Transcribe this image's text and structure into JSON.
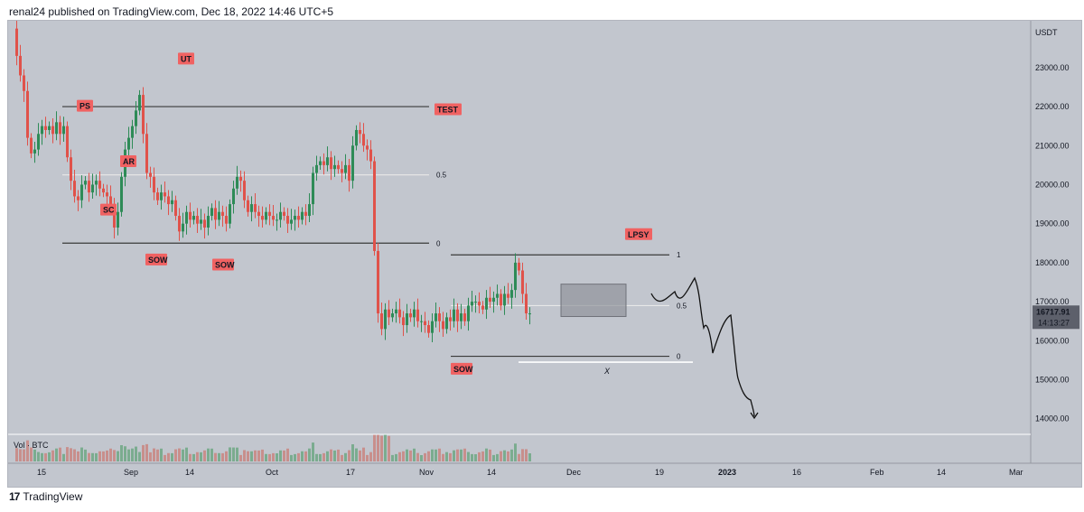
{
  "attribution": "renal24 published on TradingView.com, Dec 18, 2022 14:46 UTC+5",
  "brand": {
    "name": "TradingView",
    "icon": "tradingview-logo-icon"
  },
  "colors": {
    "background": "#c2c6ce",
    "up": "#2e8b57",
    "down": "#e0524a",
    "marker": "#f06262",
    "range_box": "#8c8f96"
  },
  "chart_data": {
    "type": "candlestick",
    "currency": "USDT",
    "ylim": [
      13600,
      24200
    ],
    "yticks": [
      14000,
      15000,
      16000,
      17000,
      18000,
      19000,
      20000,
      21000,
      22000,
      23000
    ],
    "ytick_labels": [
      "14000.00",
      "15000.00",
      "16000.00",
      "17000.00",
      "18000.00",
      "19000.00",
      "20000.00",
      "21000.00",
      "22000.00",
      "23000.00"
    ],
    "xtick_labels": [
      "15",
      "Sep",
      "14",
      "Oct",
      "17",
      "Nov",
      "14",
      "Dec",
      "19",
      "2023",
      "16",
      "Feb",
      "14",
      "Mar"
    ],
    "x_dates": [
      "2022-08-15",
      "2022-09-01",
      "2022-09-14",
      "2022-10-01",
      "2022-10-17",
      "2022-11-01",
      "2022-11-14",
      "2022-12-01",
      "2022-12-19",
      "2023-01-01",
      "2023-01-16",
      "2023-02-01",
      "2023-02-14",
      "2023-03-01"
    ],
    "grid": false,
    "last_price": "16717.91",
    "countdown": "14:13:27",
    "volume_label": "Vol · BTC",
    "closes": [
      24000,
      23300,
      22800,
      22400,
      21200,
      20800,
      20900,
      21300,
      21500,
      21400,
      21500,
      21300,
      21600,
      21300,
      21500,
      20700,
      20100,
      19700,
      19600,
      20000,
      20100,
      19800,
      20000,
      20100,
      19900,
      19800,
      19700,
      19500,
      18900,
      19300,
      20200,
      20900,
      21200,
      21500,
      21900,
      22300,
      21300,
      20300,
      20200,
      19800,
      19600,
      19800,
      19700,
      19500,
      19600,
      19200,
      18800,
      19000,
      19300,
      19100,
      19200,
      19000,
      19100,
      18900,
      19200,
      19400,
      19100,
      19300,
      19200,
      19000,
      19500,
      19900,
      20200,
      20100,
      19600,
      19300,
      19500,
      19300,
      19200,
      19100,
      19300,
      19200,
      19100,
      19100,
      19300,
      19200,
      19000,
      19100,
      19200,
      19100,
      19300,
      19200,
      19500,
      20300,
      20500,
      20600,
      20500,
      20700,
      20400,
      20500,
      20400,
      20300,
      20500,
      20100,
      21000,
      21400,
      21300,
      21000,
      20900,
      20600,
      18300,
      16700,
      16300,
      16800,
      16600,
      16700,
      16800,
      16600,
      16400,
      16700,
      16600,
      16800,
      16500,
      16500,
      16400,
      16200,
      16500,
      16700,
      16500,
      16300,
      16600,
      16500,
      16800,
      16500,
      16700,
      16500,
      16900,
      17000,
      17000,
      16900,
      16800,
      17100,
      17000,
      17100,
      17200,
      16900,
      17200,
      17100,
      17300,
      18000,
      17800,
      17200,
      16700,
      16700
    ],
    "fib_levels": [
      {
        "label": "1",
        "price": 22000
      },
      {
        "label": "0.5",
        "price": 20250
      },
      {
        "label": "0",
        "price": 18500
      },
      {
        "label": "1",
        "price": 18200
      },
      {
        "label": "0.5",
        "price": 16900
      },
      {
        "label": "0",
        "price": 15600
      }
    ],
    "annotations": [
      "PS",
      "SC",
      "AR",
      "SOW",
      "SOW",
      "UT",
      "TEST",
      "SOW",
      "LPSY",
      "X"
    ]
  }
}
